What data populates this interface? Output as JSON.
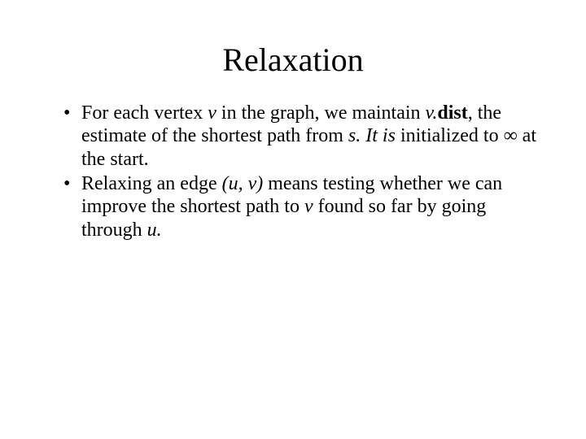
{
  "slide": {
    "title": "Relaxation",
    "title_fontsize": 40,
    "body_fontsize": 24,
    "background_color": "#ffffff",
    "text_color": "#000000",
    "font_family": "Times New Roman",
    "bullets": [
      {
        "runs": [
          {
            "t": "For each vertex ",
            "i": false,
            "b": false
          },
          {
            "t": "v",
            "i": true,
            "b": false
          },
          {
            "t": " in the graph, we maintain ",
            "i": false,
            "b": false
          },
          {
            "t": "v.",
            "i": true,
            "b": false
          },
          {
            "t": "dist",
            "i": false,
            "b": true
          },
          {
            "t": ", the estimate of the shortest path from ",
            "i": false,
            "b": false
          },
          {
            "t": "s. It is",
            "i": true,
            "b": false
          },
          {
            "t": " initialized to ∞ at the start.",
            "i": false,
            "b": false
          }
        ]
      },
      {
        "runs": [
          {
            "t": "Relaxing an edge ",
            "i": false,
            "b": false
          },
          {
            "t": "(u, v)",
            "i": true,
            "b": false
          },
          {
            "t": " means testing whether we can improve the shortest path to ",
            "i": false,
            "b": false
          },
          {
            "t": "v",
            "i": true,
            "b": false
          },
          {
            "t": " found so far by going through ",
            "i": false,
            "b": false
          },
          {
            "t": "u.",
            "i": true,
            "b": false
          }
        ]
      }
    ]
  }
}
